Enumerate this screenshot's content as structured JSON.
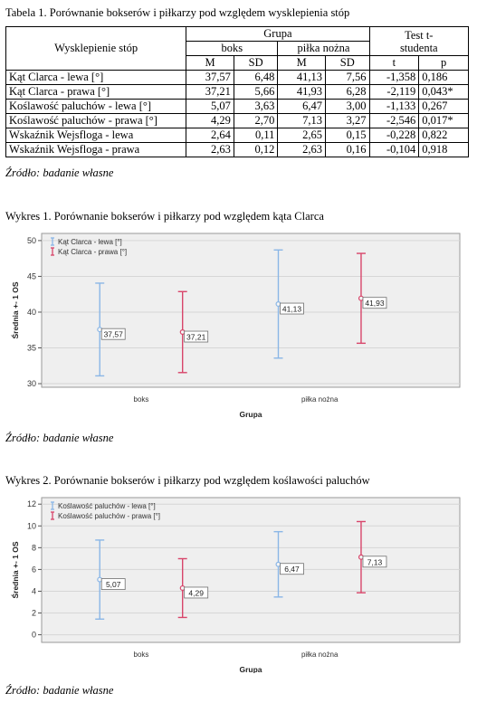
{
  "table1": {
    "caption": "Tabela 1. Porównanie bokserów i piłkarzy pod względem wysklepienia stóp",
    "header": {
      "row_label": "Wysklepienie stóp",
      "group": "Grupa",
      "test": "Test t-studenta",
      "test_line1": "Test t-",
      "test_line2": "studenta",
      "boks": "boks",
      "pilka": "piłka nożna",
      "m": "M",
      "sd": "SD",
      "t": "t",
      "p": "p"
    },
    "rows": [
      {
        "label": "Kąt Clarca - lewa [°]",
        "m1": "37,57",
        "sd1": "6,48",
        "m2": "41,13",
        "sd2": "7,56",
        "t": "-1,358",
        "p": "0,186"
      },
      {
        "label": "Kąt Clarca - prawa [°]",
        "m1": "37,21",
        "sd1": "5,66",
        "m2": "41,93",
        "sd2": "6,28",
        "t": "-2,119",
        "p": "0,043*"
      },
      {
        "label": "Koślawość paluchów - lewa [°]",
        "m1": "5,07",
        "sd1": "3,63",
        "m2": "6,47",
        "sd2": "3,00",
        "t": "-1,133",
        "p": "0,267"
      },
      {
        "label": "Koślawość paluchów - prawa [°]",
        "m1": "4,29",
        "sd1": "2,70",
        "m2": "7,13",
        "sd2": "3,27",
        "t": "-2,546",
        "p": "0,017*"
      },
      {
        "label": "Wskaźnik Wejsfloga - lewa",
        "m1": "2,64",
        "sd1": "0,11",
        "m2": "2,65",
        "sd2": "0,15",
        "t": "-0,228",
        "p": "0,822"
      },
      {
        "label": "Wskaźnik Wejsfloga - prawa",
        "m1": "2,63",
        "sd1": "0,12",
        "m2": "2,63",
        "sd2": "0,16",
        "t": "-0,104",
        "p": "0,918"
      }
    ],
    "source": "Źródło: badanie własne"
  },
  "chart1_caption": "Wykres 1. Porównanie bokserów i piłkarzy pod względem kąta Clarca",
  "chart1_source": "Źródło: badanie własne",
  "chart2_caption": "Wykres 2. Porównanie bokserów i piłkarzy pod względem koślawości paluchów",
  "chart2_source": "Źródło: badanie własne",
  "colors": {
    "left": "#8ab6e6",
    "right": "#d8456a",
    "plot_bg": "#efefef",
    "grid": "#d6d6d6"
  },
  "chart_data": [
    {
      "type": "scatter",
      "title": "",
      "xlabel": "Grupa",
      "ylabel": "Średnia +- 1 OS",
      "categories": [
        "boks",
        "piłka nożna"
      ],
      "yticks": [
        30,
        35,
        40,
        45,
        50
      ],
      "ylim": [
        29.5,
        51
      ],
      "grid": true,
      "legend": "top-left",
      "series": [
        {
          "name": "Kąt Clarca - lewa [°]",
          "color": "#8ab6e6",
          "values": [
            37.57,
            41.13
          ],
          "labels": [
            "37,57",
            "41,13"
          ],
          "err": [
            6.48,
            7.56
          ]
        },
        {
          "name": "Kąt Clarca - prawa [°]",
          "color": "#d8456a",
          "values": [
            37.21,
            41.93
          ],
          "labels": [
            "37,21",
            "41,93"
          ],
          "err": [
            5.66,
            6.28
          ]
        }
      ]
    },
    {
      "type": "scatter",
      "title": "",
      "xlabel": "Grupa",
      "ylabel": "Średnia +- 1 OS",
      "categories": [
        "boks",
        "piłka nożna"
      ],
      "yticks": [
        0,
        2,
        4,
        6,
        8,
        10,
        12
      ],
      "ylim": [
        -0.7,
        12.6
      ],
      "grid": true,
      "legend": "top-left",
      "series": [
        {
          "name": "Koślawość paluchów - lewa [°]",
          "color": "#8ab6e6",
          "values": [
            5.07,
            6.47
          ],
          "labels": [
            "5,07",
            "6,47"
          ],
          "err": [
            3.63,
            3.0
          ]
        },
        {
          "name": "Koślawość paluchów - prawa [°]",
          "color": "#d8456a",
          "values": [
            4.29,
            7.13
          ],
          "labels": [
            "4,29",
            "7,13"
          ],
          "err": [
            2.7,
            3.27
          ]
        }
      ]
    }
  ]
}
